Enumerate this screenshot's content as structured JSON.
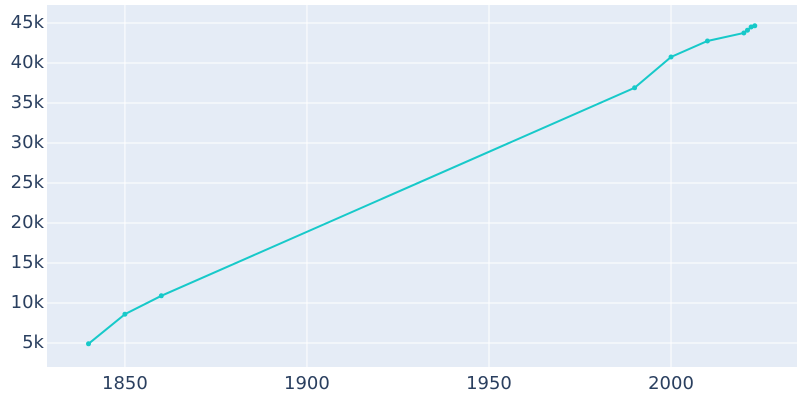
{
  "chart_data": {
    "type": "line",
    "x": [
      1840,
      1850,
      1860,
      1990,
      2000,
      2010,
      2020,
      2021,
      2022,
      2023
    ],
    "series": [
      {
        "color": "#17c9c9",
        "values": [
          4900,
          8600,
          10900,
          36900,
          40750,
          42750,
          43750,
          44100,
          44500,
          44650
        ]
      }
    ],
    "xlim": [
      1828.6,
      2034.6
    ],
    "xticks": [
      1850,
      1900,
      1950,
      2000
    ],
    "ylim": [
      2000,
      47250
    ],
    "yticks": [
      {
        "value": 5000,
        "label": "5k"
      },
      {
        "value": 10000,
        "label": "10k"
      },
      {
        "value": 15000,
        "label": "15k"
      },
      {
        "value": 20000,
        "label": "20k"
      },
      {
        "value": 25000,
        "label": "25k"
      },
      {
        "value": 30000,
        "label": "30k"
      },
      {
        "value": 35000,
        "label": "35k"
      },
      {
        "value": 40000,
        "label": "40k"
      },
      {
        "value": 45000,
        "label": "45k"
      }
    ],
    "grid": true,
    "background": "#e5ecf6"
  }
}
